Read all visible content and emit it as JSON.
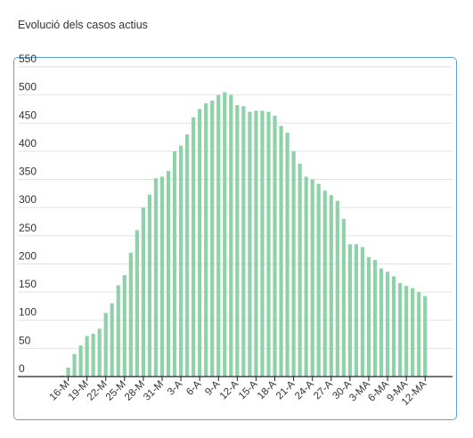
{
  "title": "Evolució dels casos actius",
  "colors": {
    "bar": "#8fd1a8",
    "grid": "#e2e2e2",
    "axis": "#222222",
    "text": "#333333",
    "border": "#5ba3d9"
  },
  "chart_data": {
    "type": "bar",
    "title": "Evolució dels casos actius",
    "xlabel": "",
    "ylabel": "",
    "ylim": [
      0,
      550
    ],
    "yticks": [
      0,
      50,
      100,
      150,
      200,
      250,
      300,
      350,
      400,
      450,
      500,
      550
    ],
    "grid": true,
    "legend": "none",
    "xtick_labels": [
      {
        "index": 1,
        "label": "16-M"
      },
      {
        "index": 4,
        "label": "19-M"
      },
      {
        "index": 7,
        "label": "22-M"
      },
      {
        "index": 10,
        "label": "25-M"
      },
      {
        "index": 13,
        "label": "28-M"
      },
      {
        "index": 16,
        "label": "31-M"
      },
      {
        "index": 19,
        "label": "3-A"
      },
      {
        "index": 22,
        "label": "6-A"
      },
      {
        "index": 25,
        "label": "9-A"
      },
      {
        "index": 28,
        "label": "12-A"
      },
      {
        "index": 31,
        "label": "15-A"
      },
      {
        "index": 34,
        "label": "18-A"
      },
      {
        "index": 37,
        "label": "21-A"
      },
      {
        "index": 40,
        "label": "24-A"
      },
      {
        "index": 43,
        "label": "27-A"
      },
      {
        "index": 46,
        "label": "30-A"
      },
      {
        "index": 49,
        "label": "3-MA"
      },
      {
        "index": 52,
        "label": "6-MA"
      },
      {
        "index": 55,
        "label": "9-MA"
      },
      {
        "index": 58,
        "label": "12-MA"
      }
    ],
    "values": [
      2,
      16,
      40,
      55,
      72,
      76,
      85,
      113,
      130,
      162,
      180,
      220,
      260,
      300,
      323,
      352,
      355,
      365,
      400,
      410,
      430,
      460,
      475,
      485,
      490,
      500,
      505,
      500,
      482,
      480,
      470,
      472,
      472,
      470,
      463,
      445,
      433,
      400,
      378,
      355,
      350,
      342,
      330,
      322,
      312,
      280,
      235,
      235,
      230,
      212,
      207,
      192,
      186,
      178,
      166,
      161,
      157,
      150,
      143
    ]
  }
}
